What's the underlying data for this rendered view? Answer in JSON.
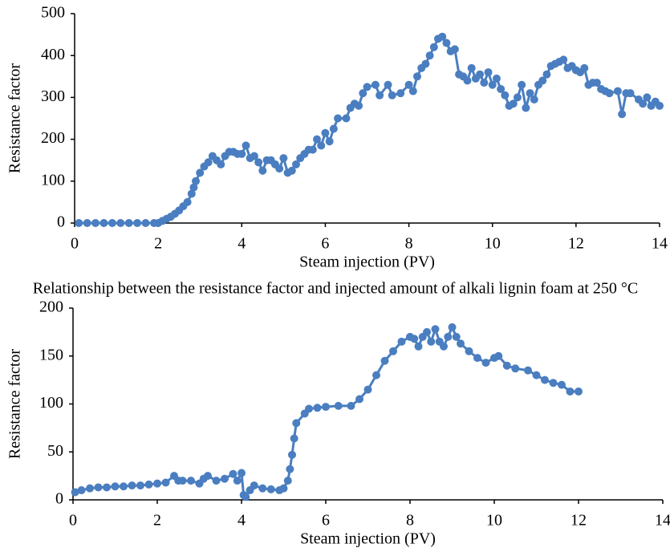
{
  "chart_data": [
    {
      "type": "line",
      "x_label": "Steam injection (PV)",
      "y_label": "Resistance factor",
      "color": "#4a7ec0",
      "xlim": [
        0,
        14
      ],
      "xticks": [
        0,
        2,
        4,
        6,
        8,
        10,
        12,
        14
      ],
      "ylim": [
        0,
        500
      ],
      "yticks": [
        0,
        100,
        200,
        300,
        400,
        500
      ],
      "x": [
        0.1,
        0.3,
        0.5,
        0.7,
        0.9,
        1.1,
        1.3,
        1.5,
        1.7,
        1.9,
        2.0,
        2.1,
        2.2,
        2.3,
        2.4,
        2.5,
        2.6,
        2.7,
        2.8,
        2.85,
        2.9,
        3.0,
        3.1,
        3.2,
        3.3,
        3.4,
        3.5,
        3.6,
        3.7,
        3.8,
        3.9,
        4.0,
        4.1,
        4.2,
        4.3,
        4.4,
        4.5,
        4.6,
        4.7,
        4.8,
        4.9,
        5.0,
        5.1,
        5.2,
        5.3,
        5.4,
        5.5,
        5.6,
        5.7,
        5.8,
        5.9,
        6.0,
        6.1,
        6.2,
        6.3,
        6.5,
        6.6,
        6.7,
        6.8,
        6.9,
        7.0,
        7.2,
        7.3,
        7.5,
        7.6,
        7.8,
        8.0,
        8.1,
        8.2,
        8.3,
        8.4,
        8.5,
        8.6,
        8.7,
        8.8,
        8.9,
        9.0,
        9.1,
        9.2,
        9.3,
        9.4,
        9.5,
        9.6,
        9.7,
        9.8,
        9.9,
        10.0,
        10.1,
        10.2,
        10.3,
        10.4,
        10.5,
        10.6,
        10.7,
        10.8,
        10.9,
        11.0,
        11.1,
        11.2,
        11.3,
        11.4,
        11.5,
        11.6,
        11.7,
        11.8,
        11.9,
        12.0,
        12.1,
        12.2,
        12.3,
        12.4,
        12.5,
        12.6,
        12.7,
        12.8,
        13.0,
        13.1,
        13.2,
        13.3,
        13.5,
        13.6,
        13.7,
        13.8,
        13.9,
        14.0
      ],
      "values": [
        0,
        0,
        0,
        0,
        0,
        0,
        0,
        0,
        0,
        0,
        0,
        5,
        10,
        15,
        22,
        30,
        40,
        50,
        70,
        85,
        100,
        120,
        135,
        145,
        160,
        150,
        140,
        160,
        170,
        170,
        165,
        165,
        185,
        155,
        160,
        145,
        125,
        150,
        150,
        140,
        130,
        155,
        120,
        125,
        140,
        155,
        165,
        175,
        175,
        200,
        185,
        215,
        195,
        225,
        250,
        250,
        275,
        285,
        280,
        310,
        325,
        330,
        305,
        330,
        305,
        310,
        330,
        315,
        350,
        370,
        380,
        400,
        420,
        440,
        445,
        430,
        410,
        415,
        355,
        350,
        340,
        370,
        345,
        355,
        335,
        360,
        330,
        345,
        320,
        305,
        280,
        285,
        300,
        330,
        275,
        310,
        295,
        330,
        340,
        355,
        375,
        380,
        385,
        390,
        370,
        375,
        365,
        360,
        370,
        330,
        335,
        335,
        320,
        315,
        310,
        315,
        260,
        310,
        310,
        295,
        285,
        300,
        280,
        290,
        280
      ]
    },
    {
      "type": "line",
      "x_label": "Steam injection (PV)",
      "y_label": "Resistance factor",
      "color": "#4a7ec0",
      "xlim": [
        0,
        14
      ],
      "xticks": [
        0,
        2,
        4,
        6,
        8,
        10,
        12,
        14
      ],
      "ylim": [
        0,
        200
      ],
      "yticks": [
        0,
        50,
        100,
        150,
        200
      ],
      "x": [
        0.05,
        0.2,
        0.4,
        0.6,
        0.8,
        1.0,
        1.2,
        1.4,
        1.6,
        1.8,
        2.0,
        2.2,
        2.4,
        2.5,
        2.6,
        2.8,
        3.0,
        3.1,
        3.2,
        3.4,
        3.6,
        3.8,
        3.9,
        4.0,
        4.05,
        4.1,
        4.2,
        4.3,
        4.5,
        4.7,
        4.9,
        5.0,
        5.1,
        5.15,
        5.2,
        5.25,
        5.3,
        5.5,
        5.6,
        5.8,
        6.0,
        6.3,
        6.6,
        6.8,
        7.0,
        7.2,
        7.4,
        7.6,
        7.8,
        8.0,
        8.1,
        8.2,
        8.3,
        8.4,
        8.5,
        8.6,
        8.7,
        8.8,
        8.9,
        9.0,
        9.1,
        9.2,
        9.4,
        9.6,
        9.8,
        10.0,
        10.1,
        10.3,
        10.5,
        10.8,
        11.0,
        11.2,
        11.4,
        11.6,
        11.8,
        12.0
      ],
      "values": [
        8,
        10,
        12,
        13,
        13,
        14,
        14,
        15,
        15,
        16,
        17,
        18,
        25,
        20,
        20,
        20,
        17,
        22,
        25,
        20,
        22,
        27,
        20,
        28,
        5,
        3,
        10,
        15,
        12,
        11,
        10,
        12,
        20,
        32,
        47,
        64,
        80,
        90,
        95,
        96,
        97,
        98,
        98,
        105,
        115,
        130,
        145,
        155,
        165,
        170,
        168,
        160,
        170,
        175,
        165,
        178,
        165,
        160,
        170,
        180,
        170,
        163,
        155,
        148,
        143,
        148,
        150,
        140,
        137,
        135,
        130,
        125,
        122,
        120,
        113,
        113
      ]
    }
  ],
  "caption": "Relationship between the resistance factor and injected amount of alkali lignin foam at 250 °C"
}
